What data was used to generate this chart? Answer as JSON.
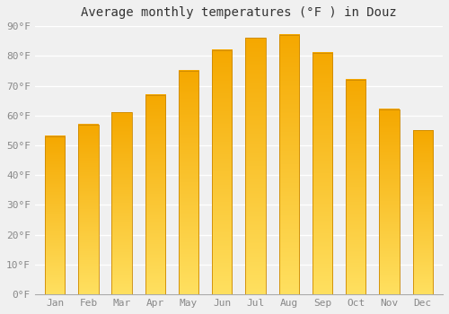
{
  "title": "Average monthly temperatures (°F ) in Douz",
  "months": [
    "Jan",
    "Feb",
    "Mar",
    "Apr",
    "May",
    "Jun",
    "Jul",
    "Aug",
    "Sep",
    "Oct",
    "Nov",
    "Dec"
  ],
  "values": [
    53,
    57,
    61,
    67,
    75,
    82,
    86,
    87,
    81,
    72,
    62,
    55
  ],
  "bar_color_top": "#F5A800",
  "bar_color_bottom": "#FFE060",
  "bar_edge_color": "#CC8800",
  "ylim": [
    0,
    90
  ],
  "yticks": [
    0,
    10,
    20,
    30,
    40,
    50,
    60,
    70,
    80,
    90
  ],
  "ytick_labels": [
    "0°F",
    "10°F",
    "20°F",
    "30°F",
    "40°F",
    "50°F",
    "60°F",
    "70°F",
    "80°F",
    "90°F"
  ],
  "background_color": "#f0f0f0",
  "grid_color": "#ffffff",
  "title_fontsize": 10,
  "tick_fontsize": 8,
  "font_family": "monospace",
  "bar_width": 0.6,
  "figsize": [
    5.0,
    3.5
  ],
  "dpi": 100
}
